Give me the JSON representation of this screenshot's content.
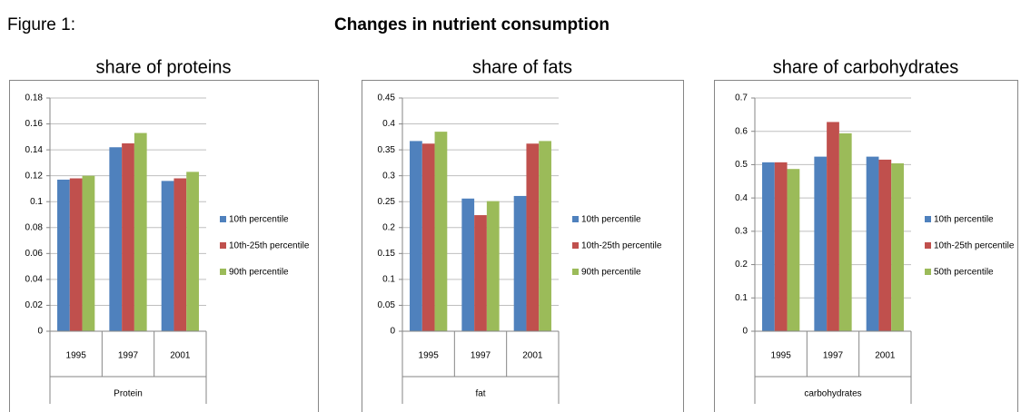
{
  "header": {
    "label": "Figure 1:",
    "title": "Changes in nutrient consumption"
  },
  "chart_data": [
    {
      "type": "bar",
      "title": "share of proteins",
      "group_label": "Protein",
      "categories": [
        "1995",
        "1997",
        "2001"
      ],
      "series": [
        {
          "name": "10th percentile",
          "color": "#4f81bd",
          "values": [
            0.117,
            0.142,
            0.116
          ]
        },
        {
          "name": "10th-25th percentile",
          "color": "#c0504d",
          "values": [
            0.118,
            0.145,
            0.118
          ]
        },
        {
          "name": "90th percentile",
          "color": "#9bbb59",
          "values": [
            0.12,
            0.153,
            0.123
          ]
        }
      ],
      "ylim": [
        0,
        0.18
      ],
      "yticks": [
        0,
        0.02,
        0.04,
        0.06,
        0.08,
        0.1,
        0.12,
        0.14,
        0.16,
        0.18
      ],
      "grid": true,
      "legend": "right"
    },
    {
      "type": "bar",
      "title": "share of fats",
      "group_label": "fat",
      "categories": [
        "1995",
        "1997",
        "2001"
      ],
      "series": [
        {
          "name": "10th percentile",
          "color": "#4f81bd",
          "values": [
            0.367,
            0.256,
            0.261
          ]
        },
        {
          "name": "10th-25th percentile",
          "color": "#c0504d",
          "values": [
            0.362,
            0.224,
            0.362
          ]
        },
        {
          "name": "90th percentile",
          "color": "#9bbb59",
          "values": [
            0.385,
            0.251,
            0.367
          ]
        }
      ],
      "ylim": [
        0,
        0.45
      ],
      "yticks": [
        0,
        0.05,
        0.1,
        0.15,
        0.2,
        0.25,
        0.3,
        0.35,
        0.4,
        0.45
      ],
      "grid": true,
      "legend": "right"
    },
    {
      "type": "bar",
      "title": "share of carbohydrates",
      "group_label": "carbohydrates",
      "categories": [
        "1995",
        "1997",
        "2001"
      ],
      "series": [
        {
          "name": "10th percentile",
          "color": "#4f81bd",
          "values": [
            0.507,
            0.524,
            0.524
          ]
        },
        {
          "name": "10th-25th percentile",
          "color": "#c0504d",
          "values": [
            0.507,
            0.628,
            0.515
          ]
        },
        {
          "name": "50th percentile",
          "color": "#9bbb59",
          "values": [
            0.487,
            0.594,
            0.504
          ]
        }
      ],
      "ylim": [
        0,
        0.7
      ],
      "yticks": [
        0,
        0.1,
        0.2,
        0.3,
        0.4,
        0.5,
        0.6,
        0.7
      ],
      "grid": true,
      "legend": "right"
    }
  ]
}
